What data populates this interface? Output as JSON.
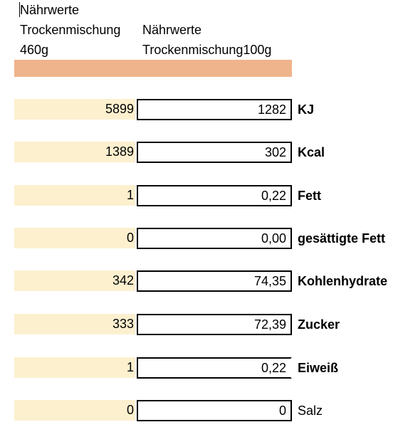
{
  "colors": {
    "header_band": "#f0b48c",
    "cell_fill": "#fdf0cf",
    "border": "#000000"
  },
  "header": {
    "title": "Nährwerte",
    "col1_line1": "Trockenmischung",
    "col1_line2": "460g",
    "col2_line1": "Nährwerte",
    "col2_line2": "Trockenmischung100g"
  },
  "rows": [
    {
      "total": "5899",
      "per100": "1282",
      "label": "KJ",
      "bold": true
    },
    {
      "total": "1389",
      "per100": "302",
      "label": "Kcal",
      "bold": true
    },
    {
      "total": "1",
      "per100": "0,22",
      "label": "Fett",
      "bold": true
    },
    {
      "total": "0",
      "per100": "0,00",
      "label": "gesättigte Fett",
      "bold": true
    },
    {
      "total": "342",
      "per100": "74,35",
      "label": "Kohlenhydrate",
      "bold": true
    },
    {
      "total": "333",
      "per100": "72,39",
      "label": "Zucker",
      "bold": true
    },
    {
      "total": "1",
      "per100": "0,22",
      "label": "Eiweiß",
      "bold": true
    },
    {
      "total": "0",
      "per100": "0",
      "label": "Salz",
      "bold": false
    }
  ]
}
